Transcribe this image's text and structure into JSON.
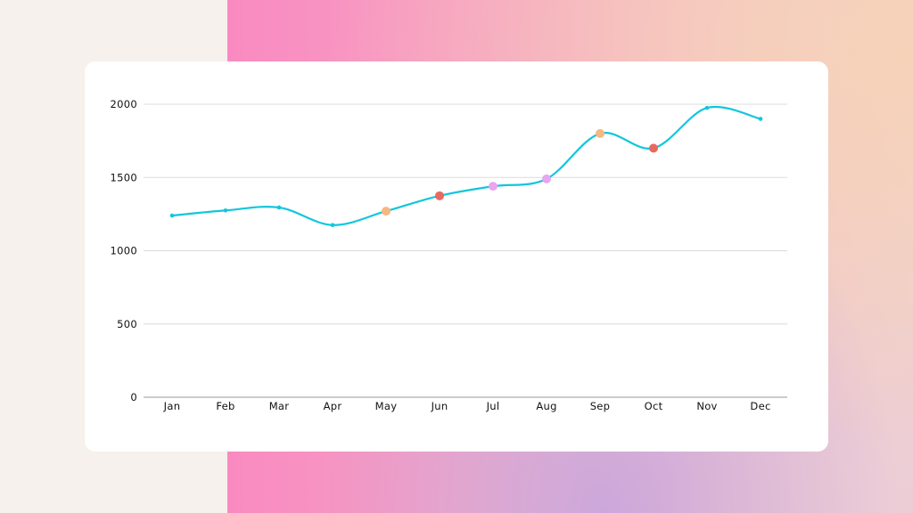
{
  "chart_data": {
    "type": "line",
    "categories": [
      "Jan",
      "Feb",
      "Mar",
      "Apr",
      "May",
      "Jun",
      "Jul",
      "Aug",
      "Sep",
      "Oct",
      "Nov",
      "Dec"
    ],
    "values": [
      1240,
      1275,
      1295,
      1175,
      1270,
      1375,
      1440,
      1490,
      1800,
      1700,
      1975,
      1900
    ],
    "y_ticks": [
      0,
      500,
      1000,
      1500,
      2000
    ],
    "ylim": [
      0,
      2000
    ],
    "line_color": "#12c6dc",
    "highlight_colors": {
      "May": "#f5b882",
      "Jun": "#e8695f",
      "Jul": "#e7a6ef",
      "Aug": "#e7a6ef",
      "Sep": "#f5b882",
      "Oct": "#e8695f"
    },
    "grid": true,
    "title": "",
    "xlabel": "",
    "ylabel": ""
  }
}
